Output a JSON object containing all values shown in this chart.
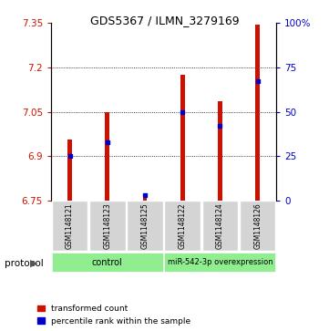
{
  "title": "GDS5367 / ILMN_3279169",
  "samples": [
    "GSM1148121",
    "GSM1148123",
    "GSM1148125",
    "GSM1148122",
    "GSM1148124",
    "GSM1148126"
  ],
  "transformed_count": [
    6.955,
    7.05,
    6.757,
    7.175,
    7.085,
    7.345
  ],
  "percentile_rank": [
    25,
    33,
    3,
    50,
    42,
    67
  ],
  "y_min": 6.75,
  "y_max": 7.35,
  "y_ticks": [
    6.75,
    6.9,
    7.05,
    7.2,
    7.35
  ],
  "right_y_ticks": [
    0,
    25,
    50,
    75,
    100
  ],
  "bar_color": "#CC1100",
  "percentile_color": "#0000CC",
  "bar_width": 0.12,
  "legend_items": [
    "transformed count",
    "percentile rank within the sample"
  ]
}
